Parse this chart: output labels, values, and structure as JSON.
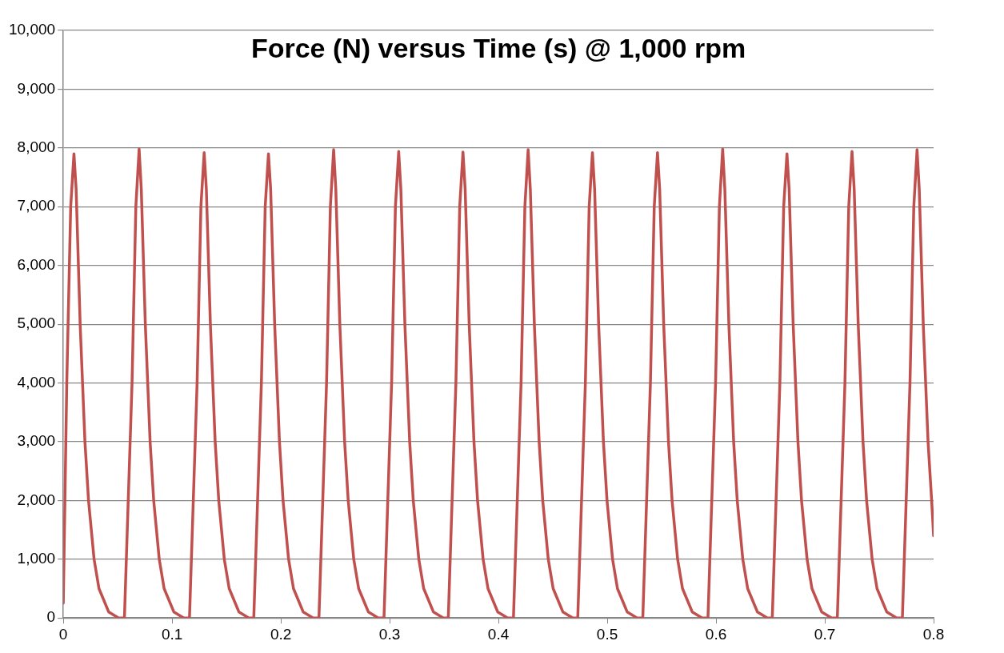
{
  "chart_data": {
    "type": "line",
    "title": "Force (N) versus Time (s) @ 1,000 rpm",
    "xlim": [
      0,
      0.8
    ],
    "xticks": [
      0,
      0.1,
      0.2,
      0.3,
      0.4,
      0.5,
      0.6,
      0.7,
      0.8
    ],
    "ylim": [
      0,
      10000
    ],
    "yticks": [
      {
        "value": 0,
        "label": "0"
      },
      {
        "value": 1000,
        "label": "1,000"
      },
      {
        "value": 2000,
        "label": "2,000"
      },
      {
        "value": 3000,
        "label": "3,000"
      },
      {
        "value": 4000,
        "label": "4,000"
      },
      {
        "value": 5000,
        "label": "5,000"
      },
      {
        "value": 6000,
        "label": "6,000"
      },
      {
        "value": 7000,
        "label": "7,000"
      },
      {
        "value": 8000,
        "label": "8,000"
      },
      {
        "value": 9000,
        "label": "9,000"
      },
      {
        "value": 10000,
        "label": "10,000"
      }
    ],
    "grid": "y",
    "legend": false,
    "marker": "none",
    "line_style": "solid",
    "series": [
      {
        "color": "#c0504d",
        "x": [
          0,
          0.0032,
          0.0068,
          0.0098,
          0.0118,
          0.0155,
          0.0199,
          0.0232,
          0.0283,
          0.0328,
          0.0418,
          0.0508,
          0.0562,
          0.0632,
          0.0667,
          0.0697,
          0.0717,
          0.0754,
          0.0798,
          0.0831,
          0.0882,
          0.0927,
          0.1017,
          0.1107,
          0.116,
          0.123,
          0.1265,
          0.1295,
          0.1315,
          0.1352,
          0.1396,
          0.1429,
          0.148,
          0.1525,
          0.1615,
          0.1705,
          0.1751,
          0.1821,
          0.1856,
          0.1886,
          0.1906,
          0.1943,
          0.1987,
          0.202,
          0.2071,
          0.2116,
          0.2206,
          0.2296,
          0.235,
          0.242,
          0.2455,
          0.2485,
          0.2505,
          0.2542,
          0.2586,
          0.2619,
          0.267,
          0.2715,
          0.2805,
          0.2895,
          0.2948,
          0.3018,
          0.3053,
          0.3083,
          0.3103,
          0.314,
          0.3184,
          0.3217,
          0.3268,
          0.3313,
          0.3403,
          0.3493,
          0.3539,
          0.3609,
          0.3644,
          0.3674,
          0.3694,
          0.3731,
          0.3775,
          0.3808,
          0.3859,
          0.3904,
          0.3994,
          0.4084,
          0.4138,
          0.4208,
          0.4243,
          0.4273,
          0.4293,
          0.433,
          0.4374,
          0.4407,
          0.4458,
          0.4503,
          0.4593,
          0.4683,
          0.4729,
          0.4799,
          0.4834,
          0.4864,
          0.4884,
          0.4921,
          0.4965,
          0.4998,
          0.5049,
          0.5094,
          0.5184,
          0.5274,
          0.5327,
          0.5397,
          0.5432,
          0.5462,
          0.5482,
          0.5519,
          0.5563,
          0.5596,
          0.5647,
          0.5692,
          0.5782,
          0.5872,
          0.5926,
          0.5996,
          0.6031,
          0.6061,
          0.6081,
          0.6118,
          0.6162,
          0.6195,
          0.6246,
          0.6291,
          0.6381,
          0.6471,
          0.6517,
          0.6587,
          0.6622,
          0.6652,
          0.6672,
          0.6709,
          0.6753,
          0.6786,
          0.6837,
          0.6882,
          0.6972,
          0.7062,
          0.7115,
          0.7185,
          0.722,
          0.725,
          0.727,
          0.7307,
          0.7351,
          0.7384,
          0.7435,
          0.748,
          0.757,
          0.766,
          0.7713,
          0.7783,
          0.7818,
          0.7848,
          0.7868,
          0.7905,
          0.7949,
          0.7982,
          0.8
        ],
        "values": [
          250,
          4000,
          7000,
          7900,
          7300,
          5000,
          3000,
          2000,
          1000,
          500,
          100,
          0,
          0,
          4000,
          7000,
          7980,
          7300,
          5000,
          3000,
          2000,
          1000,
          500,
          100,
          0,
          0,
          4000,
          7000,
          7920,
          7300,
          5000,
          3000,
          2000,
          1000,
          500,
          100,
          0,
          0,
          4000,
          7000,
          7900,
          7300,
          5000,
          3000,
          2000,
          1000,
          500,
          100,
          0,
          0,
          4000,
          7000,
          7970,
          7300,
          5000,
          3000,
          2000,
          1000,
          500,
          100,
          0,
          0,
          4000,
          7000,
          7940,
          7300,
          5000,
          3000,
          2000,
          1000,
          500,
          100,
          0,
          0,
          4000,
          7000,
          7930,
          7300,
          5000,
          3000,
          2000,
          1000,
          500,
          100,
          0,
          0,
          4000,
          7000,
          7970,
          7300,
          5000,
          3000,
          2000,
          1000,
          500,
          100,
          0,
          0,
          4000,
          7000,
          7920,
          7300,
          5000,
          3000,
          2000,
          1000,
          500,
          100,
          0,
          0,
          4000,
          7000,
          7920,
          7300,
          5000,
          3000,
          2000,
          1000,
          500,
          100,
          0,
          0,
          4000,
          7000,
          7980,
          7300,
          5000,
          3000,
          2000,
          1000,
          500,
          100,
          0,
          0,
          4000,
          7000,
          7900,
          7300,
          5000,
          3000,
          2000,
          1000,
          500,
          100,
          0,
          0,
          4000,
          7000,
          7940,
          7300,
          5000,
          3000,
          2000,
          1000,
          500,
          100,
          0,
          0,
          4000,
          7000,
          7970,
          7300,
          5000,
          3000,
          2000,
          1400
        ]
      }
    ]
  }
}
